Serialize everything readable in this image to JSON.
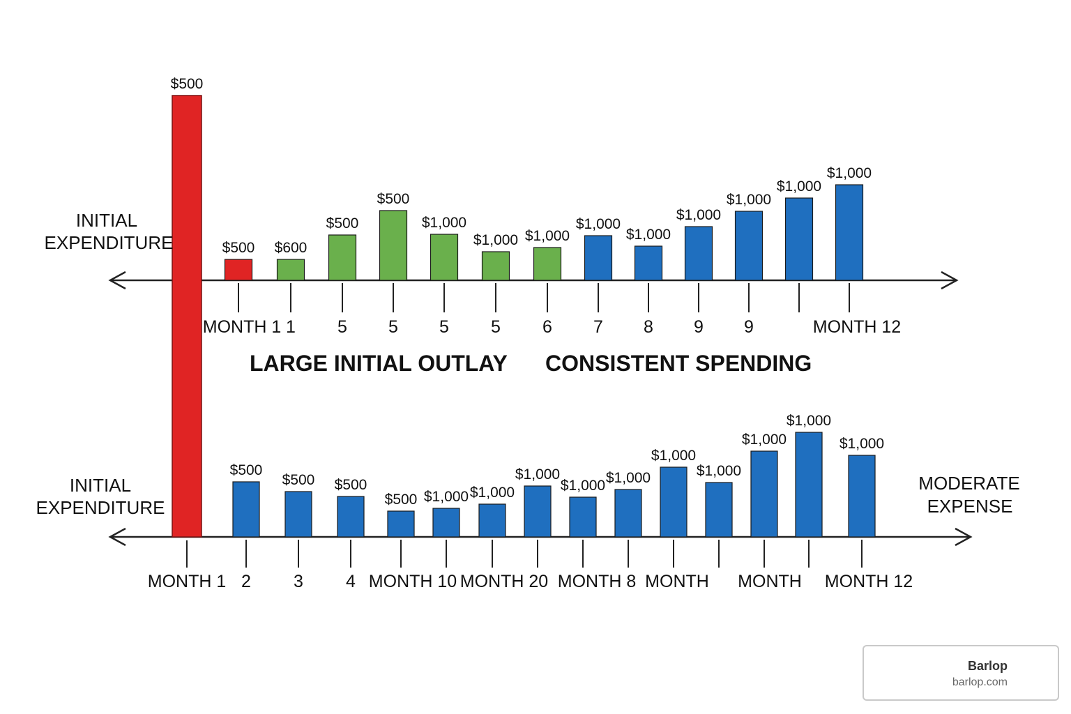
{
  "colors": {
    "red": "#e02424",
    "green": "#6ab04c",
    "blue": "#1f6fbf",
    "axis": "#222222"
  },
  "chart_data": [
    {
      "type": "bar",
      "title": "LARGE INITIAL OUTLAY / CONSISTENT SPENDING",
      "section_labels": [
        "LARGE INITIAL OUTLAY",
        "CONSISTENT SPENDING"
      ],
      "ylabel": [
        "INITIAL",
        "EXPENDITURE"
      ],
      "categories": [
        "MONTH 1",
        "1",
        "5",
        "5",
        "5",
        "5",
        "6",
        "7",
        "8",
        "9",
        "9",
        "",
        "MONTH 12"
      ],
      "value_labels": [
        "$500",
        "$600",
        "$500",
        "$500",
        "$1,000",
        "$1,000",
        "$1,000",
        "$1,000",
        "$1,000",
        "$1,000",
        "$1,000",
        "$1,000",
        "$1,000"
      ],
      "relative_heights": [
        30,
        30,
        65,
        100,
        66,
        41,
        47,
        64,
        49,
        77,
        99,
        118,
        137
      ],
      "bar_colors": [
        "red",
        "green",
        "green",
        "green",
        "green",
        "green",
        "green",
        "blue",
        "blue",
        "blue",
        "blue",
        "blue",
        "blue"
      ]
    },
    {
      "type": "bar",
      "ylabel": [
        "INITIAL",
        "EXPENDITURE"
      ],
      "right_label": [
        "MODERATE",
        "EXPENSE"
      ],
      "categories": [
        "2",
        "3",
        "4",
        "MONTH 10",
        "",
        "MONTH 20",
        "",
        "MONTH 8",
        "",
        "MONTH",
        "",
        "MONTH",
        "",
        "MONTH 12"
      ],
      "value_labels": [
        "$500",
        "$500",
        "$500",
        "$500",
        "$1,000",
        "$1,000",
        "$1,000",
        "$1,000",
        "$1,000",
        "$1,000",
        "$1,000",
        "$1,000",
        "$1,000",
        "$1,000"
      ],
      "relative_heights": [
        79,
        65,
        58,
        37,
        41,
        47,
        73,
        57,
        68,
        100,
        78,
        123,
        150,
        117
      ],
      "bar_colors": [
        "blue",
        "blue",
        "blue",
        "blue",
        "blue",
        "blue",
        "blue",
        "blue",
        "blue",
        "blue",
        "blue",
        "blue",
        "blue",
        "blue"
      ]
    },
    {
      "type": "bar",
      "description": "shared initial bar",
      "value_label": "$500",
      "category": "MONTH 1",
      "bar_color": "red"
    }
  ],
  "watermark": {
    "title": "Barlop",
    "url": "barlop.com"
  }
}
